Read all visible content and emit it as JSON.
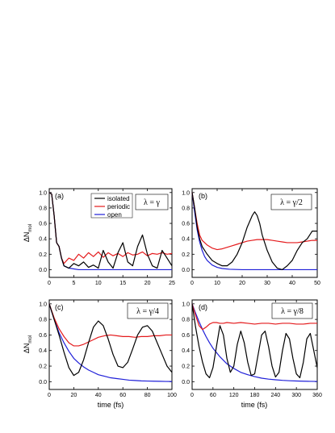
{
  "figure": {
    "ylabel_main": "ΔN",
    "ylabel_sub": "mol"
  },
  "legend": {
    "items": [
      {
        "label": "isolated",
        "color": "#000000"
      },
      {
        "label": "periodic",
        "color": "#e41a1c"
      },
      {
        "label": "open",
        "color": "#1f1fd8"
      }
    ]
  },
  "chart_data": [
    {
      "panel": "(a)",
      "type": "line",
      "annotation": "λ = γ",
      "xlabel": "",
      "ylabel": "ΔNmol",
      "xlim": [
        0,
        25
      ],
      "ylim": [
        -0.1,
        1.05
      ],
      "xticks": [
        0,
        5,
        10,
        15,
        20,
        25
      ],
      "yticks": [
        0.0,
        0.2,
        0.4,
        0.6,
        0.8,
        1.0
      ],
      "series": [
        {
          "name": "isolated",
          "x": [
            0,
            0.5,
            1.0,
            1.5,
            2.0,
            2.5,
            3.0,
            4.0,
            5.0,
            6.0,
            7.0,
            8.0,
            9.0,
            10.0,
            11.0,
            12.0,
            13.0,
            14.0,
            15.0,
            16.0,
            17.0,
            18.0,
            19.0,
            20.0,
            21.0,
            22.0,
            23.0,
            24.0,
            25.0
          ],
          "y": [
            1.0,
            0.98,
            0.7,
            0.35,
            0.3,
            0.15,
            0.05,
            0.02,
            0.08,
            0.05,
            0.1,
            0.03,
            0.06,
            0.02,
            0.25,
            0.1,
            0.02,
            0.22,
            0.35,
            0.1,
            0.05,
            0.3,
            0.45,
            0.2,
            0.05,
            0.02,
            0.25,
            0.15,
            0.05
          ]
        },
        {
          "name": "periodic",
          "x": [
            0,
            0.5,
            1.0,
            1.5,
            2.0,
            2.5,
            3.0,
            4.0,
            5.0,
            6.0,
            7.0,
            8.0,
            9.0,
            10.0,
            11.0,
            12.0,
            13.0,
            14.0,
            15.0,
            16.0,
            17.0,
            18.0,
            19.0,
            20.0,
            21.0,
            22.0,
            23.0,
            24.0,
            25.0
          ],
          "y": [
            1.0,
            0.98,
            0.7,
            0.35,
            0.3,
            0.15,
            0.08,
            0.15,
            0.12,
            0.2,
            0.15,
            0.22,
            0.17,
            0.23,
            0.16,
            0.22,
            0.18,
            0.21,
            0.17,
            0.22,
            0.19,
            0.2,
            0.23,
            0.18,
            0.21,
            0.2,
            0.22,
            0.2,
            0.21
          ]
        },
        {
          "name": "open",
          "x": [
            0,
            0.5,
            1.0,
            1.5,
            2.0,
            2.5,
            3.0,
            4.0,
            5.0,
            6.0,
            8.0,
            10.0,
            15.0,
            20.0,
            25.0
          ],
          "y": [
            1.0,
            0.98,
            0.7,
            0.35,
            0.3,
            0.15,
            0.05,
            0.02,
            0.01,
            0.0,
            0.0,
            0.0,
            0.0,
            0.0,
            0.0
          ]
        }
      ]
    },
    {
      "panel": "(b)",
      "type": "line",
      "annotation": "λ = γ/2",
      "xlabel": "",
      "ylabel": "",
      "xlim": [
        0,
        50
      ],
      "ylim": [
        -0.1,
        1.05
      ],
      "xticks": [
        0,
        10,
        20,
        30,
        40,
        50
      ],
      "yticks": [
        0.0,
        0.2,
        0.4,
        0.6,
        0.8,
        1.0
      ],
      "series": [
        {
          "name": "isolated",
          "x": [
            0,
            1,
            2,
            3,
            4,
            6,
            8,
            10,
            12,
            14,
            16,
            18,
            20,
            22,
            24,
            25,
            26,
            27,
            28,
            30,
            32,
            34,
            36,
            38,
            40,
            42,
            44,
            46,
            48,
            50
          ],
          "y": [
            1.0,
            0.8,
            0.55,
            0.4,
            0.3,
            0.2,
            0.12,
            0.08,
            0.05,
            0.05,
            0.1,
            0.2,
            0.35,
            0.55,
            0.7,
            0.75,
            0.7,
            0.6,
            0.45,
            0.25,
            0.1,
            0.02,
            0.0,
            0.05,
            0.12,
            0.25,
            0.35,
            0.4,
            0.5,
            0.5
          ]
        },
        {
          "name": "periodic",
          "x": [
            0,
            1,
            2,
            3,
            4,
            6,
            8,
            10,
            12,
            14,
            16,
            18,
            20,
            22,
            24,
            26,
            28,
            30,
            32,
            34,
            36,
            38,
            40,
            42,
            44,
            46,
            48,
            50
          ],
          "y": [
            1.0,
            0.8,
            0.6,
            0.45,
            0.38,
            0.32,
            0.28,
            0.26,
            0.27,
            0.29,
            0.31,
            0.33,
            0.35,
            0.37,
            0.38,
            0.39,
            0.39,
            0.39,
            0.38,
            0.37,
            0.36,
            0.35,
            0.35,
            0.35,
            0.36,
            0.37,
            0.38,
            0.38
          ]
        },
        {
          "name": "open",
          "x": [
            0,
            1,
            2,
            3,
            4,
            5,
            6,
            8,
            10,
            12,
            15,
            20,
            30,
            40,
            50
          ],
          "y": [
            1.0,
            0.75,
            0.52,
            0.36,
            0.25,
            0.17,
            0.12,
            0.06,
            0.03,
            0.015,
            0.005,
            0.0,
            0.0,
            0.0,
            0.0
          ]
        }
      ]
    },
    {
      "panel": "(c)",
      "type": "line",
      "annotation": "λ = γ/4",
      "xlabel": "time (fs)",
      "ylabel": "ΔNmol",
      "xlim": [
        0,
        100
      ],
      "ylim": [
        -0.1,
        1.05
      ],
      "xticks": [
        0,
        20,
        40,
        60,
        80,
        100
      ],
      "yticks": [
        0.0,
        0.2,
        0.4,
        0.6,
        0.8,
        1.0
      ],
      "series": [
        {
          "name": "isolated",
          "x": [
            0,
            4,
            8,
            12,
            16,
            20,
            24,
            28,
            32,
            36,
            40,
            44,
            48,
            52,
            56,
            60,
            64,
            68,
            72,
            76,
            80,
            84,
            88,
            92,
            96,
            100
          ],
          "y": [
            1.0,
            0.8,
            0.6,
            0.38,
            0.18,
            0.08,
            0.12,
            0.28,
            0.5,
            0.7,
            0.78,
            0.72,
            0.55,
            0.35,
            0.2,
            0.18,
            0.25,
            0.42,
            0.6,
            0.7,
            0.72,
            0.65,
            0.5,
            0.35,
            0.2,
            0.12
          ]
        },
        {
          "name": "periodic",
          "x": [
            0,
            4,
            8,
            12,
            16,
            20,
            24,
            28,
            32,
            36,
            40,
            45,
            50,
            55,
            60,
            65,
            70,
            75,
            80,
            85,
            90,
            95,
            100
          ],
          "y": [
            1.0,
            0.82,
            0.68,
            0.58,
            0.5,
            0.46,
            0.46,
            0.48,
            0.51,
            0.54,
            0.57,
            0.59,
            0.6,
            0.59,
            0.58,
            0.58,
            0.57,
            0.58,
            0.58,
            0.59,
            0.59,
            0.6,
            0.6
          ]
        },
        {
          "name": "open",
          "x": [
            0,
            4,
            8,
            12,
            16,
            20,
            24,
            28,
            32,
            36,
            40,
            45,
            50,
            55,
            60,
            65,
            70,
            75,
            80,
            85,
            90,
            95,
            100
          ],
          "y": [
            1.0,
            0.8,
            0.63,
            0.5,
            0.39,
            0.3,
            0.24,
            0.19,
            0.15,
            0.12,
            0.09,
            0.07,
            0.05,
            0.04,
            0.03,
            0.02,
            0.015,
            0.01,
            0.008,
            0.006,
            0.005,
            0.003,
            0.002
          ]
        }
      ]
    },
    {
      "panel": "(d)",
      "type": "line",
      "annotation": "λ = γ/8",
      "xlabel": "time (fs)",
      "ylabel": "",
      "xlim": [
        0,
        360
      ],
      "ylim": [
        -0.1,
        1.05
      ],
      "xticks": [
        0,
        60,
        120,
        180,
        240,
        300,
        360
      ],
      "yticks": [
        0.0,
        0.2,
        0.4,
        0.6,
        0.8,
        1.0
      ],
      "series": [
        {
          "name": "isolated",
          "x": [
            0,
            10,
            20,
            30,
            40,
            50,
            60,
            70,
            80,
            90,
            100,
            110,
            120,
            130,
            140,
            150,
            160,
            170,
            180,
            190,
            200,
            210,
            220,
            230,
            240,
            250,
            260,
            270,
            280,
            290,
            300,
            310,
            320,
            330,
            340,
            350,
            360
          ],
          "y": [
            1.0,
            0.7,
            0.45,
            0.25,
            0.1,
            0.05,
            0.18,
            0.45,
            0.72,
            0.6,
            0.3,
            0.12,
            0.2,
            0.48,
            0.65,
            0.5,
            0.25,
            0.08,
            0.1,
            0.35,
            0.6,
            0.65,
            0.45,
            0.2,
            0.06,
            0.12,
            0.4,
            0.62,
            0.55,
            0.3,
            0.1,
            0.05,
            0.25,
            0.55,
            0.62,
            0.4,
            0.18
          ]
        },
        {
          "name": "periodic",
          "x": [
            0,
            10,
            20,
            30,
            40,
            50,
            60,
            70,
            80,
            90,
            100,
            120,
            140,
            160,
            180,
            200,
            220,
            240,
            260,
            280,
            300,
            320,
            340,
            360
          ],
          "y": [
            1.0,
            0.85,
            0.72,
            0.67,
            0.7,
            0.74,
            0.76,
            0.76,
            0.75,
            0.75,
            0.76,
            0.75,
            0.76,
            0.75,
            0.74,
            0.75,
            0.75,
            0.74,
            0.75,
            0.75,
            0.74,
            0.74,
            0.75,
            0.75
          ]
        },
        {
          "name": "open",
          "x": [
            0,
            10,
            20,
            30,
            40,
            50,
            60,
            80,
            100,
            120,
            140,
            160,
            180,
            200,
            220,
            240,
            260,
            280,
            300,
            320,
            340,
            360
          ],
          "y": [
            1.0,
            0.88,
            0.77,
            0.67,
            0.58,
            0.5,
            0.43,
            0.32,
            0.23,
            0.17,
            0.12,
            0.09,
            0.065,
            0.045,
            0.033,
            0.024,
            0.017,
            0.012,
            0.009,
            0.006,
            0.004,
            0.003
          ]
        }
      ]
    }
  ]
}
